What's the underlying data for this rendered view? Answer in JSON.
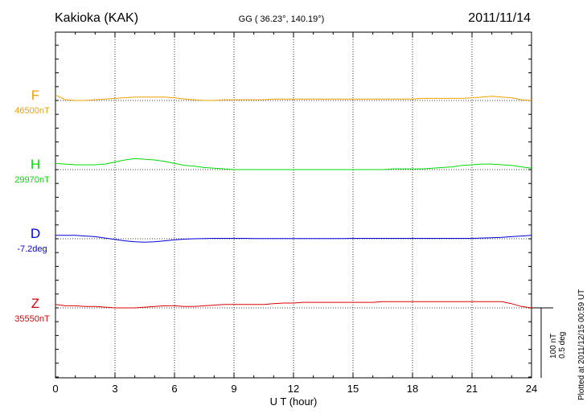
{
  "header": {
    "station": "Kakioka (KAK)",
    "coords": "GG ( 36.23°, 140.19°)",
    "date": "2011/11/14"
  },
  "footer": {
    "scale_nt": "100 nT",
    "scale_deg": "0.5 deg",
    "plotted_at": "Plotted at 2011/12/15 00:59 UT"
  },
  "chart_data": {
    "type": "line",
    "xlabel": "U T (hour)",
    "xlim": [
      0,
      24
    ],
    "xticks": [
      0,
      3,
      6,
      9,
      12,
      15,
      18,
      21,
      24
    ],
    "vertical_grid": [
      3,
      6,
      9,
      12,
      15,
      18,
      21
    ],
    "series": [
      {
        "name": "F",
        "baseline_label": "46500nT",
        "baseline": 46500,
        "unit": "nT",
        "color": "#f0a000",
        "points": [
          [
            0,
            46508
          ],
          [
            0.5,
            46501
          ],
          [
            1,
            46500
          ],
          [
            1.5,
            46500
          ],
          [
            2,
            46501
          ],
          [
            2.5,
            46502
          ],
          [
            3,
            46503
          ],
          [
            3.5,
            46504
          ],
          [
            4,
            46505
          ],
          [
            4.5,
            46505
          ],
          [
            5,
            46505
          ],
          [
            5.5,
            46505
          ],
          [
            6,
            46504
          ],
          [
            6.5,
            46502
          ],
          [
            7,
            46501
          ],
          [
            7.5,
            46500
          ],
          [
            8,
            46500
          ],
          [
            8.5,
            46501
          ],
          [
            9,
            46501
          ],
          [
            9.5,
            46501
          ],
          [
            10,
            46501
          ],
          [
            10.5,
            46501
          ],
          [
            11,
            46502
          ],
          [
            11.5,
            46502
          ],
          [
            12,
            46502
          ],
          [
            12.5,
            46502
          ],
          [
            13,
            46502
          ],
          [
            13.5,
            46502
          ],
          [
            14,
            46502
          ],
          [
            14.5,
            46502
          ],
          [
            15,
            46502
          ],
          [
            15.5,
            46502
          ],
          [
            16,
            46502
          ],
          [
            16.5,
            46502
          ],
          [
            17,
            46502
          ],
          [
            17.5,
            46502
          ],
          [
            18,
            46502
          ],
          [
            18.5,
            46503
          ],
          [
            19,
            46503
          ],
          [
            19.5,
            46503
          ],
          [
            20,
            46503
          ],
          [
            20.5,
            46503
          ],
          [
            21,
            46504
          ],
          [
            21.5,
            46505
          ],
          [
            22,
            46506
          ],
          [
            22.5,
            46505
          ],
          [
            23,
            46504
          ],
          [
            23.5,
            46501
          ],
          [
            24,
            46500
          ]
        ]
      },
      {
        "name": "H",
        "baseline_label": "29970nT",
        "baseline": 29970,
        "unit": "nT",
        "color": "#00dd00",
        "points": [
          [
            0,
            29979
          ],
          [
            0.5,
            29978
          ],
          [
            1,
            29977
          ],
          [
            1.5,
            29977
          ],
          [
            2,
            29977
          ],
          [
            2.5,
            29978
          ],
          [
            3,
            29981
          ],
          [
            3.5,
            29984
          ],
          [
            4,
            29986
          ],
          [
            4.5,
            29985
          ],
          [
            5,
            29984
          ],
          [
            5.5,
            29982
          ],
          [
            6,
            29979
          ],
          [
            6.5,
            29976
          ],
          [
            7,
            29975
          ],
          [
            7.5,
            29973
          ],
          [
            8,
            29972
          ],
          [
            8.5,
            29971
          ],
          [
            9,
            29970
          ],
          [
            9.5,
            29970
          ],
          [
            10,
            29970
          ],
          [
            10.5,
            29970
          ],
          [
            11,
            29970
          ],
          [
            11.5,
            29970
          ],
          [
            12,
            29970
          ],
          [
            12.5,
            29970
          ],
          [
            13,
            29970
          ],
          [
            13.5,
            29970
          ],
          [
            14,
            29970
          ],
          [
            14.5,
            29970
          ],
          [
            15,
            29970
          ],
          [
            15.5,
            29970
          ],
          [
            16,
            29970
          ],
          [
            16.5,
            29970
          ],
          [
            17,
            29971
          ],
          [
            17.5,
            29971
          ],
          [
            18,
            29971
          ],
          [
            18.5,
            29971
          ],
          [
            19,
            29972
          ],
          [
            19.5,
            29973
          ],
          [
            20,
            29974
          ],
          [
            20.5,
            29976
          ],
          [
            21,
            29977
          ],
          [
            21.5,
            29978
          ],
          [
            22,
            29978
          ],
          [
            22.5,
            29977
          ],
          [
            23,
            29976
          ],
          [
            23.5,
            29974
          ],
          [
            24,
            29972
          ]
        ]
      },
      {
        "name": "D",
        "baseline_label": "-7.2deg",
        "baseline": -7.2,
        "unit": "deg",
        "color": "#0000dd",
        "points": [
          [
            0,
            -7.175
          ],
          [
            0.5,
            -7.175
          ],
          [
            1,
            -7.175
          ],
          [
            1.5,
            -7.18
          ],
          [
            2,
            -7.185
          ],
          [
            2.5,
            -7.195
          ],
          [
            3,
            -7.205
          ],
          [
            3.5,
            -7.215
          ],
          [
            4,
            -7.222
          ],
          [
            4.5,
            -7.225
          ],
          [
            5,
            -7.222
          ],
          [
            5.5,
            -7.215
          ],
          [
            6,
            -7.208
          ],
          [
            6.5,
            -7.203
          ],
          [
            7,
            -7.2
          ],
          [
            7.5,
            -7.198
          ],
          [
            8,
            -7.197
          ],
          [
            8.5,
            -7.197
          ],
          [
            9,
            -7.197
          ],
          [
            9.5,
            -7.197
          ],
          [
            10,
            -7.198
          ],
          [
            10.5,
            -7.198
          ],
          [
            11,
            -7.198
          ],
          [
            11.5,
            -7.198
          ],
          [
            12,
            -7.198
          ],
          [
            12.5,
            -7.198
          ],
          [
            13,
            -7.198
          ],
          [
            13.5,
            -7.198
          ],
          [
            14,
            -7.198
          ],
          [
            14.5,
            -7.198
          ],
          [
            15,
            -7.197
          ],
          [
            15.5,
            -7.197
          ],
          [
            16,
            -7.197
          ],
          [
            16.5,
            -7.197
          ],
          [
            17,
            -7.197
          ],
          [
            17.5,
            -7.197
          ],
          [
            18,
            -7.197
          ],
          [
            18.5,
            -7.197
          ],
          [
            19,
            -7.197
          ],
          [
            19.5,
            -7.197
          ],
          [
            20,
            -7.197
          ],
          [
            20.5,
            -7.197
          ],
          [
            21,
            -7.197
          ],
          [
            21.5,
            -7.195
          ],
          [
            22,
            -7.193
          ],
          [
            22.5,
            -7.19
          ],
          [
            23,
            -7.185
          ],
          [
            23.5,
            -7.18
          ],
          [
            24,
            -7.175
          ]
        ]
      },
      {
        "name": "Z",
        "baseline_label": "35550nT",
        "baseline": 35550,
        "unit": "nT",
        "color": "#dd0000",
        "points": [
          [
            0,
            35555
          ],
          [
            0.5,
            35553
          ],
          [
            1,
            35553
          ],
          [
            1.5,
            35552
          ],
          [
            2,
            35552
          ],
          [
            2.5,
            35551
          ],
          [
            3,
            35550
          ],
          [
            3.5,
            35550
          ],
          [
            4,
            35550
          ],
          [
            4.5,
            35551
          ],
          [
            5,
            35552
          ],
          [
            5.5,
            35553
          ],
          [
            6,
            35553
          ],
          [
            6.5,
            35552
          ],
          [
            7,
            35552
          ],
          [
            7.5,
            35553
          ],
          [
            8,
            35554
          ],
          [
            8.5,
            35555
          ],
          [
            9,
            35555
          ],
          [
            9.5,
            35555
          ],
          [
            10,
            35555
          ],
          [
            10.5,
            35555
          ],
          [
            11,
            35556
          ],
          [
            11.5,
            35557
          ],
          [
            12,
            35557
          ],
          [
            12.5,
            35558
          ],
          [
            13,
            35558
          ],
          [
            13.5,
            35558
          ],
          [
            14,
            35558
          ],
          [
            14.5,
            35558
          ],
          [
            15,
            35558
          ],
          [
            15.5,
            35558
          ],
          [
            16,
            35558
          ],
          [
            16.5,
            35559
          ],
          [
            17,
            35559
          ],
          [
            17.5,
            35559
          ],
          [
            18,
            35559
          ],
          [
            18.5,
            35559
          ],
          [
            19,
            35559
          ],
          [
            19.5,
            35559
          ],
          [
            20,
            35559
          ],
          [
            20.5,
            35559
          ],
          [
            21,
            35559
          ],
          [
            21.5,
            35559
          ],
          [
            22,
            35559
          ],
          [
            22.5,
            35559
          ],
          [
            23,
            35556
          ],
          [
            23.5,
            35552
          ],
          [
            24,
            35550
          ]
        ]
      }
    ]
  }
}
